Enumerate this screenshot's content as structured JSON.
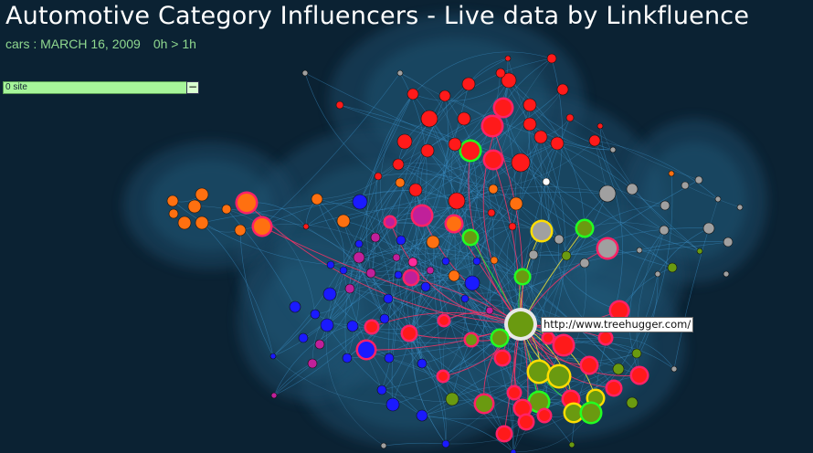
{
  "header": {
    "title": "Automotive Category Influencers - Live data by Linkfluence",
    "subtitle_date": "cars : MARCH 16, 2009",
    "subtitle_time": "0h > 1h"
  },
  "filter": {
    "label": "0 site",
    "collapse_symbol": "−"
  },
  "tooltip": {
    "url": "http://www.treehugger.com/"
  },
  "colors": {
    "background": "#0b2233",
    "cloud": "#1d4a66",
    "edge": "#3a8fc8",
    "red": "#ff1a1a",
    "orange": "#ff7010",
    "blue": "#1a1aff",
    "green": "#6a9a10",
    "gray": "#a0a0a0",
    "highlight_ring_green": "#22ff22",
    "highlight_ring_yellow": "#ffdd00",
    "highlight_ring_pink": "#ff2266"
  }
}
